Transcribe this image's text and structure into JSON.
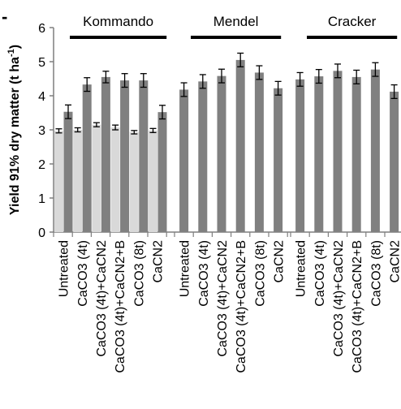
{
  "chart_data": {
    "type": "bar",
    "ylabel": "Yield 91% dry matter (t ha",
    "ylabel_sup": "-1",
    "ylabel_close": ")",
    "ylim": [
      0,
      6
    ],
    "yticks": [
      0,
      1,
      2,
      3,
      4,
      5,
      6
    ],
    "grid": false,
    "corner_mark": "-",
    "categories": [
      "Untreated",
      "CaCO3 (4t)",
      "CaCO3 (4t)+CaCN2",
      "CaCO3 (4t)+CaCN2+B",
      "CaCO3 (8t)",
      "CaCN2"
    ],
    "colors": {
      "light": "#d9d9d9",
      "dark": "#808080",
      "axis": "#7f7f7f",
      "text": "#000000"
    },
    "groups": [
      {
        "name": "Kommando",
        "series": [
          {
            "values": [
              2.97,
              3.0,
              3.15,
              3.07,
              2.93,
              2.98
            ],
            "errors": [
              0.06,
              0.06,
              0.06,
              0.07,
              0.05,
              0.06
            ],
            "color": "light"
          },
          {
            "values": [
              3.53,
              4.33,
              4.55,
              4.45,
              4.45,
              3.52
            ],
            "errors": [
              0.2,
              0.2,
              0.17,
              0.2,
              0.2,
              0.2
            ],
            "color": "dark"
          }
        ]
      },
      {
        "name": "Mendel",
        "series": [
          {
            "values": [
              4.18,
              4.42,
              4.58,
              5.05,
              4.68,
              4.22
            ],
            "errors": [
              0.2,
              0.2,
              0.2,
              0.2,
              0.2,
              0.2
            ],
            "color": "dark"
          }
        ]
      },
      {
        "name": "Cracker",
        "series": [
          {
            "values": [
              4.48,
              4.57,
              4.73,
              4.55,
              4.77,
              4.12
            ],
            "errors": [
              0.2,
              0.2,
              0.2,
              0.2,
              0.2,
              0.2
            ],
            "color": "dark"
          }
        ]
      }
    ]
  }
}
